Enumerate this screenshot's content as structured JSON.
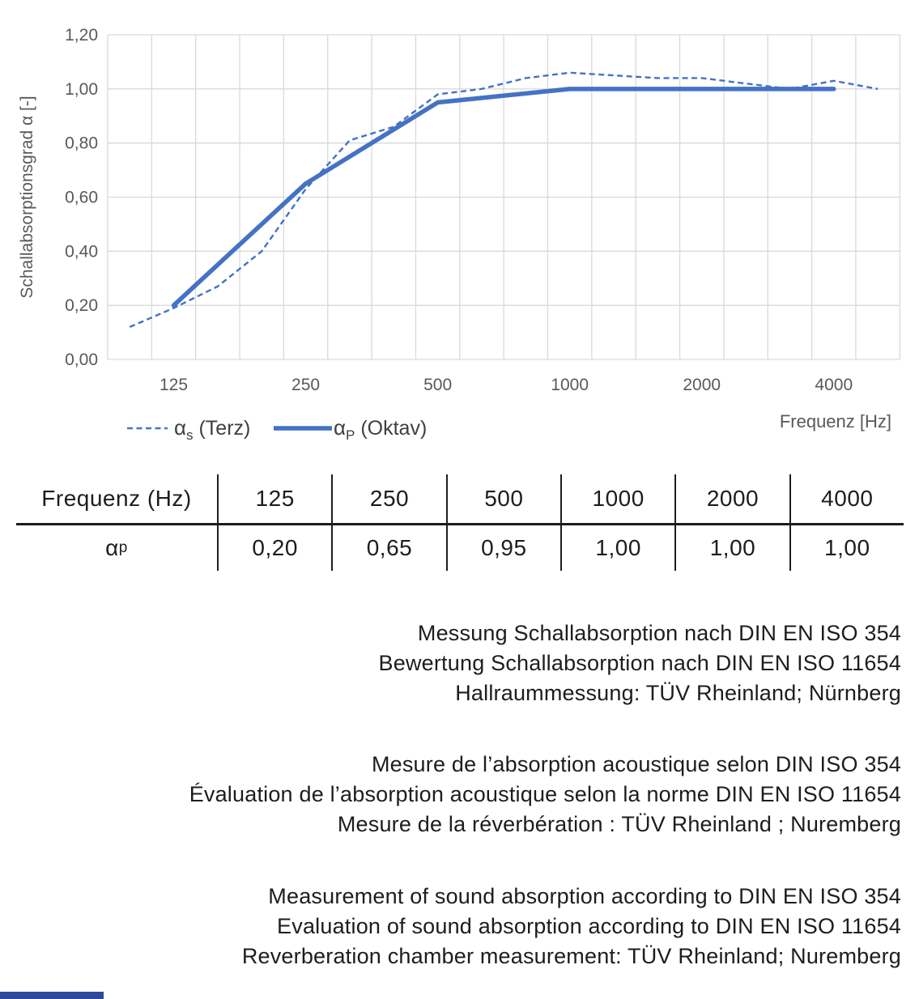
{
  "chart": {
    "y_axis_title": "Schallabsorptionsgrad α [-]",
    "x_axis_title": "Frequenz [Hz]",
    "y_ticks": [
      "1,20",
      "1,00",
      "0,80",
      "0,60",
      "0,40",
      "0,20",
      "0,00"
    ],
    "x_ticks": [
      "125",
      "250",
      "500",
      "1000",
      "2000",
      "4000"
    ],
    "legend": [
      {
        "symbol": "α",
        "subscript": "s",
        "label": " (Terz)",
        "style": "dashed"
      },
      {
        "symbol": "α",
        "subscript": "P",
        "label": " (Oktav)",
        "style": "solid"
      }
    ],
    "colors": {
      "series_blue": "#4472C4",
      "gridline": "#D9D9D9",
      "axis_text": "#595959",
      "legend_text": "#3f3f3f"
    }
  },
  "chart_data": {
    "type": "line",
    "title": "",
    "xlabel": "Frequenz [Hz]",
    "ylabel": "Schallabsorptionsgrad α [-]",
    "x_scale": "third-octave bands, logarithmic spacing",
    "bands": [
      100,
      125,
      160,
      200,
      250,
      315,
      400,
      500,
      630,
      800,
      1000,
      1250,
      1600,
      2000,
      2500,
      3150,
      4000,
      5000
    ],
    "x_tick_bands": [
      125,
      250,
      500,
      1000,
      2000,
      4000
    ],
    "ylim": [
      0,
      1.2
    ],
    "y_tick_step": 0.2,
    "grid": true,
    "legend_position": "bottom-left",
    "series": [
      {
        "name": "αs (Terz)",
        "style": "dashed",
        "color": "#4472C4",
        "x": [
          100,
          125,
          160,
          200,
          250,
          315,
          400,
          500,
          630,
          800,
          1000,
          1250,
          1600,
          2000,
          2500,
          3150,
          4000,
          5000
        ],
        "values": [
          0.12,
          0.19,
          0.27,
          0.4,
          0.63,
          0.81,
          0.86,
          0.98,
          1.0,
          1.04,
          1.06,
          1.05,
          1.04,
          1.04,
          1.02,
          1.0,
          1.03,
          1.0
        ]
      },
      {
        "name": "αP (Oktav)",
        "style": "solid",
        "color": "#4472C4",
        "x": [
          125,
          250,
          500,
          1000,
          2000,
          4000
        ],
        "values": [
          0.2,
          0.65,
          0.95,
          1.0,
          1.0,
          1.0
        ]
      }
    ]
  },
  "table": {
    "header": [
      "Frequenz (Hz)",
      "125",
      "250",
      "500",
      "1000",
      "2000",
      "4000"
    ],
    "row_label": {
      "symbol": "α",
      "subscript": "p"
    },
    "values": [
      "0,20",
      "0,65",
      "0,95",
      "1,00",
      "1,00",
      "1,00"
    ]
  },
  "notes": {
    "de": [
      "Messung Schallabsorption nach DIN EN ISO 354",
      "Bewertung Schallabsorption nach DIN EN ISO 11654",
      "Hallraummessung: TÜV Rheinland; Nürnberg"
    ],
    "fr": [
      "Mesure de l’absorption acoustique selon DIN ISO 354",
      "Évaluation de l’absorption acoustique selon la norme DIN EN ISO 11654",
      "Mesure de la réverbération : TÜV Rheinland ; Nuremberg"
    ],
    "en": [
      "Measurement of sound absorption according to DIN EN ISO 354",
      "Evaluation of sound absorption according to DIN EN ISO 11654",
      "Reverberation chamber measurement: TÜV Rheinland; Nuremberg"
    ]
  },
  "footer": {
    "accent_bar_color": "#2d4b9a"
  }
}
